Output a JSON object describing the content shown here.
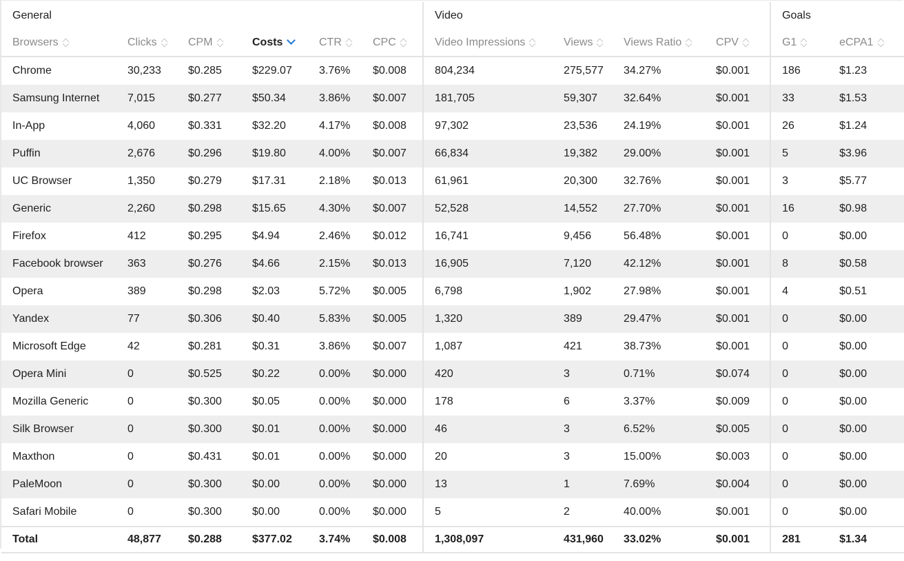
{
  "groups": {
    "general": "General",
    "video": "Video",
    "goals": "Goals"
  },
  "columns": [
    {
      "key": "browser",
      "label": "Browsers"
    },
    {
      "key": "clicks",
      "label": "Clicks"
    },
    {
      "key": "cpm",
      "label": "CPM"
    },
    {
      "key": "costs",
      "label": "Costs"
    },
    {
      "key": "ctr",
      "label": "CTR"
    },
    {
      "key": "cpc",
      "label": "CPC"
    },
    {
      "key": "video_impressions",
      "label": "Video Impressions"
    },
    {
      "key": "views",
      "label": "Views"
    },
    {
      "key": "views_ratio",
      "label": "Views Ratio"
    },
    {
      "key": "cpv",
      "label": "CPV"
    },
    {
      "key": "g1",
      "label": "G1"
    },
    {
      "key": "ecpa1",
      "label": "eCPA1"
    }
  ],
  "sorted_column": "costs",
  "sort_direction": "descending",
  "rows": [
    [
      "Chrome",
      "30,233",
      "$0.285",
      "$229.07",
      "3.76%",
      "$0.008",
      "804,234",
      "275,577",
      "34.27%",
      "$0.001",
      "186",
      "$1.23"
    ],
    [
      "Samsung Internet",
      "7,015",
      "$0.277",
      "$50.34",
      "3.86%",
      "$0.007",
      "181,705",
      "59,307",
      "32.64%",
      "$0.001",
      "33",
      "$1.53"
    ],
    [
      "In-App",
      "4,060",
      "$0.331",
      "$32.20",
      "4.17%",
      "$0.008",
      "97,302",
      "23,536",
      "24.19%",
      "$0.001",
      "26",
      "$1.24"
    ],
    [
      "Puffin",
      "2,676",
      "$0.296",
      "$19.80",
      "4.00%",
      "$0.007",
      "66,834",
      "19,382",
      "29.00%",
      "$0.001",
      "5",
      "$3.96"
    ],
    [
      "UC Browser",
      "1,350",
      "$0.279",
      "$17.31",
      "2.18%",
      "$0.013",
      "61,961",
      "20,300",
      "32.76%",
      "$0.001",
      "3",
      "$5.77"
    ],
    [
      "Generic",
      "2,260",
      "$0.298",
      "$15.65",
      "4.30%",
      "$0.007",
      "52,528",
      "14,552",
      "27.70%",
      "$0.001",
      "16",
      "$0.98"
    ],
    [
      "Firefox",
      "412",
      "$0.295",
      "$4.94",
      "2.46%",
      "$0.012",
      "16,741",
      "9,456",
      "56.48%",
      "$0.001",
      "0",
      "$0.00"
    ],
    [
      "Facebook browser",
      "363",
      "$0.276",
      "$4.66",
      "2.15%",
      "$0.013",
      "16,905",
      "7,120",
      "42.12%",
      "$0.001",
      "8",
      "$0.58"
    ],
    [
      "Opera",
      "389",
      "$0.298",
      "$2.03",
      "5.72%",
      "$0.005",
      "6,798",
      "1,902",
      "27.98%",
      "$0.001",
      "4",
      "$0.51"
    ],
    [
      "Yandex",
      "77",
      "$0.306",
      "$0.40",
      "5.83%",
      "$0.005",
      "1,320",
      "389",
      "29.47%",
      "$0.001",
      "0",
      "$0.00"
    ],
    [
      "Microsoft Edge",
      "42",
      "$0.281",
      "$0.31",
      "3.86%",
      "$0.007",
      "1,087",
      "421",
      "38.73%",
      "$0.001",
      "0",
      "$0.00"
    ],
    [
      "Opera Mini",
      "0",
      "$0.525",
      "$0.22",
      "0.00%",
      "$0.000",
      "420",
      "3",
      "0.71%",
      "$0.074",
      "0",
      "$0.00"
    ],
    [
      "Mozilla Generic",
      "0",
      "$0.300",
      "$0.05",
      "0.00%",
      "$0.000",
      "178",
      "6",
      "3.37%",
      "$0.009",
      "0",
      "$0.00"
    ],
    [
      "Silk Browser",
      "0",
      "$0.300",
      "$0.01",
      "0.00%",
      "$0.000",
      "46",
      "3",
      "6.52%",
      "$0.005",
      "0",
      "$0.00"
    ],
    [
      "Maxthon",
      "0",
      "$0.431",
      "$0.01",
      "0.00%",
      "$0.000",
      "20",
      "3",
      "15.00%",
      "$0.003",
      "0",
      "$0.00"
    ],
    [
      "PaleMoon",
      "0",
      "$0.300",
      "$0.00",
      "0.00%",
      "$0.000",
      "13",
      "1",
      "7.69%",
      "$0.004",
      "0",
      "$0.00"
    ],
    [
      "Safari Mobile",
      "0",
      "$0.300",
      "$0.00",
      "0.00%",
      "$0.000",
      "5",
      "2",
      "40.00%",
      "$0.001",
      "0",
      "$0.00"
    ]
  ],
  "total": [
    "Total",
    "48,877",
    "$0.288",
    "$377.02",
    "3.74%",
    "$0.008",
    "1,308,097",
    "431,960",
    "33.02%",
    "$0.001",
    "281",
    "$1.34"
  ]
}
